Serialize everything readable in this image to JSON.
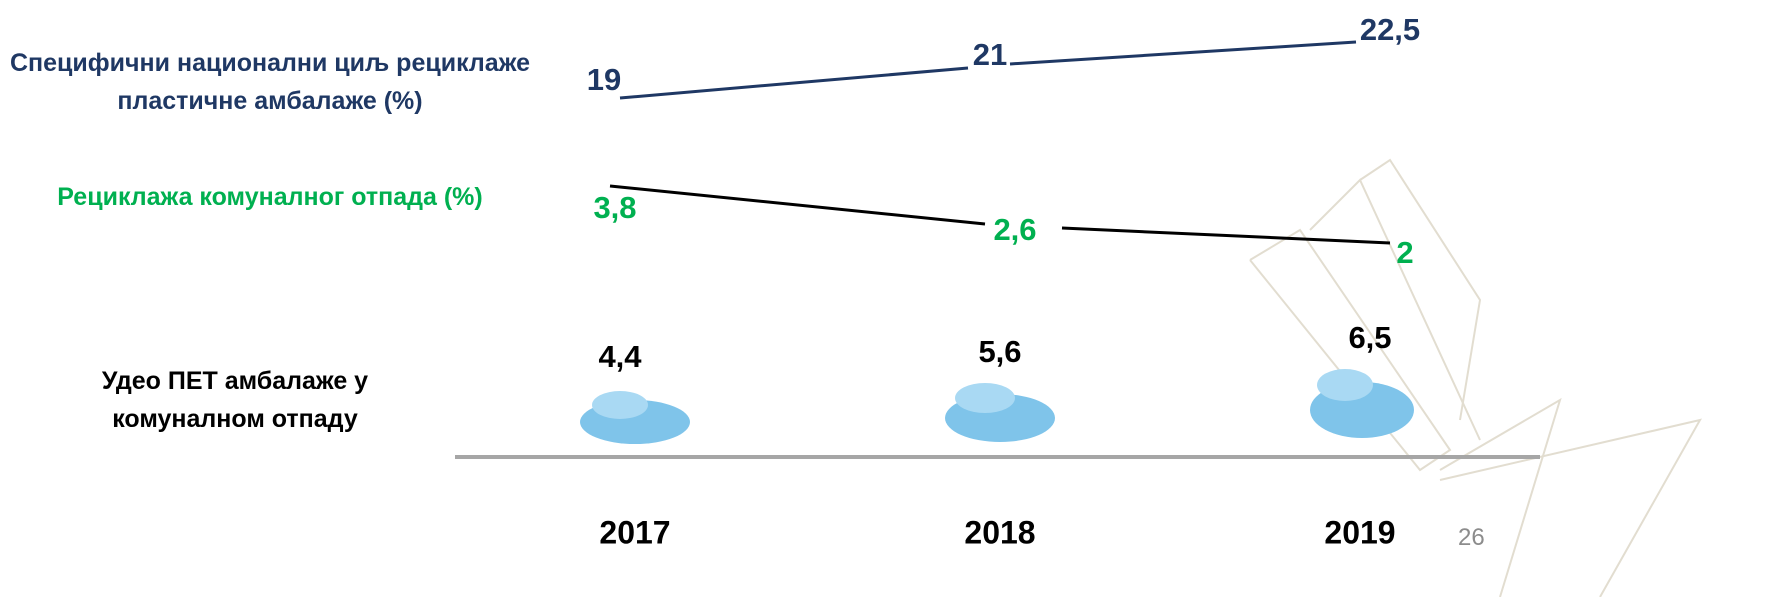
{
  "rows": [
    {
      "label": "Специфични национални циљ рециклаже пластичне амбалаже (%)",
      "values": [
        "19",
        "21",
        "22,5"
      ]
    },
    {
      "label": "Рециклажа комуналног отпада (%)",
      "values": [
        "3,8",
        "2,6",
        "2"
      ]
    },
    {
      "label": "Удео ПЕТ амбалаже у комуналном отпаду",
      "values": [
        "4,4",
        "5,6",
        "6,5"
      ]
    }
  ],
  "years": [
    "2017",
    "2018",
    "2019"
  ],
  "page_number": "26"
}
